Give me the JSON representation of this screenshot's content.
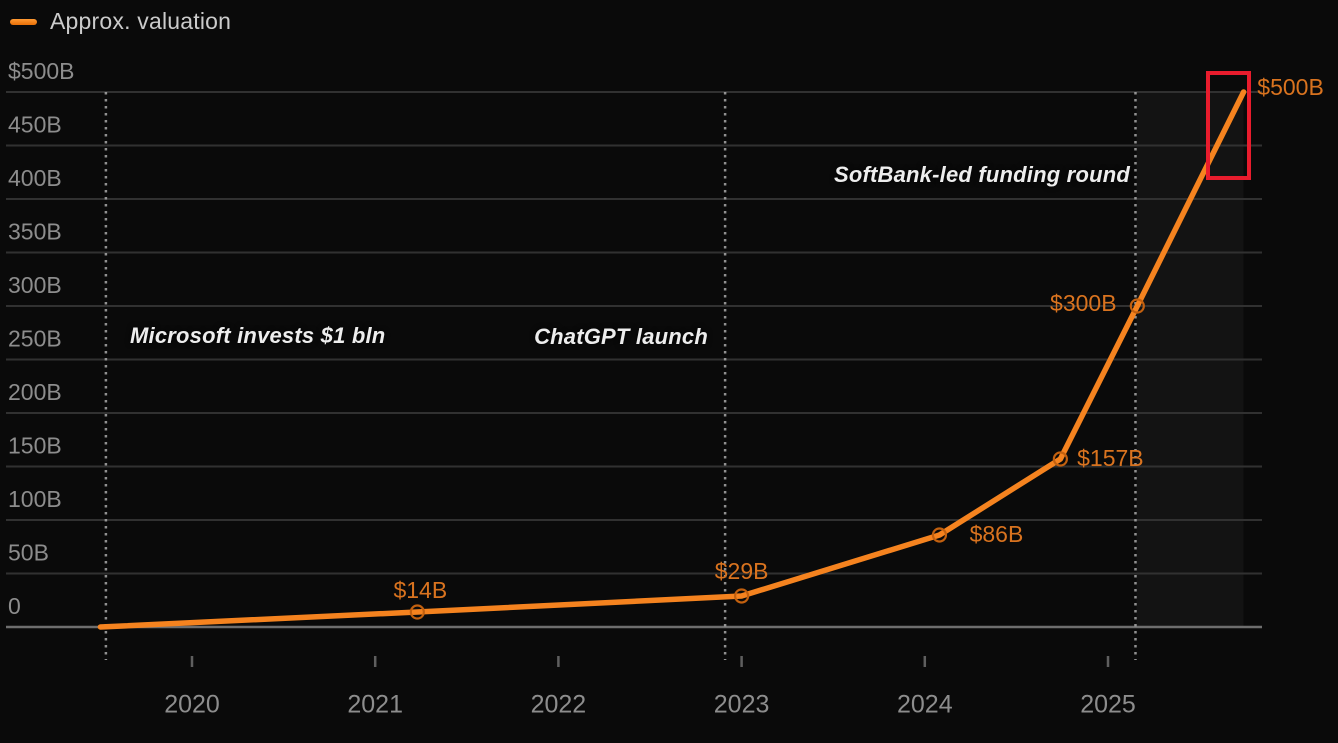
{
  "legend": {
    "label": "Approx. valuation"
  },
  "colors": {
    "line": "#f5831f",
    "marker_stroke": "#c2600f",
    "point_label": "#d9731f",
    "axis_label": "#8d8d8d",
    "annotation_text": "#ededed",
    "highlight_box": "#e91c2d",
    "background": "#0a0a0a",
    "gridline": "#313131",
    "zero_line": "#6e6e6e",
    "event_line": "#a8a8a8",
    "tick": "#5f5f5f"
  },
  "chart_data": {
    "type": "line",
    "title": "Approx. valuation",
    "x_unit": "year",
    "y_unit": "USD billions",
    "grid": true,
    "legend_position": "top-left",
    "x_range": [
      2019.45,
      2025.85
    ],
    "y_range": [
      0,
      500
    ],
    "x_ticks": [
      2020,
      2021,
      2022,
      2023,
      2024,
      2025
    ],
    "x_tick_labels": [
      "2020",
      "2021",
      "2022",
      "2023",
      "2024",
      "2025"
    ],
    "y_ticks": [
      0,
      50,
      100,
      150,
      200,
      250,
      300,
      350,
      400,
      450,
      500
    ],
    "y_tick_labels": [
      "0",
      "50B",
      "100B",
      "150B",
      "200B",
      "250B",
      "300B",
      "350B",
      "400B",
      "450B",
      "$500B"
    ],
    "points": [
      {
        "x": 2019.5,
        "y": 0,
        "label": "",
        "marker": false
      },
      {
        "x": 2021.23,
        "y": 14,
        "label": "$14B",
        "marker": true
      },
      {
        "x": 2023.0,
        "y": 29,
        "label": "$29B",
        "marker": true
      },
      {
        "x": 2024.08,
        "y": 86,
        "label": "$86B",
        "marker": true
      },
      {
        "x": 2024.74,
        "y": 157,
        "label": "$157B",
        "marker": true
      },
      {
        "x": 2025.16,
        "y": 300,
        "label": "$300B",
        "marker": true
      },
      {
        "x": 2025.74,
        "y": 500,
        "label": "$500B",
        "marker": false
      }
    ],
    "events": [
      {
        "x": 2019.53,
        "label": "Microsoft invests $1 bln"
      },
      {
        "x": 2022.91,
        "label": "ChatGPT launch"
      },
      {
        "x": 2025.15,
        "label": "SoftBank-led funding round"
      }
    ],
    "highlight": {
      "note": "red box around final point",
      "value": "$500B"
    }
  }
}
